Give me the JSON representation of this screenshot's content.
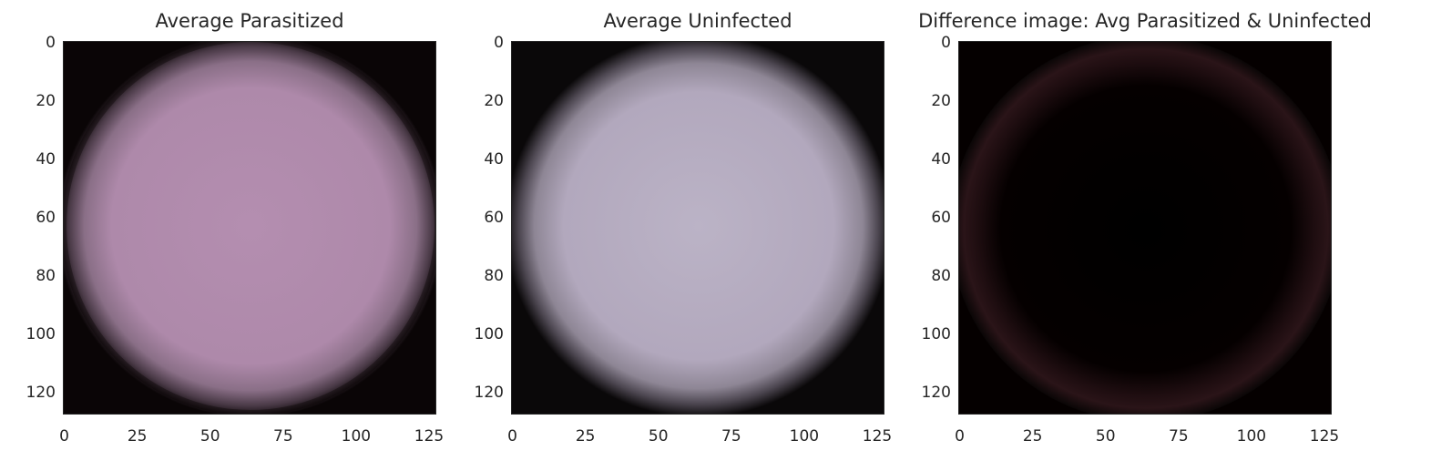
{
  "figure": {
    "panels": [
      {
        "title": "Average Parasitized",
        "image_description_colors": {
          "background": "#0a0506",
          "cell_center": "#b48eb0",
          "cell_edge": "#a07d9b"
        },
        "x_ticks": [
          "0",
          "25",
          "50",
          "75",
          "100",
          "125"
        ],
        "y_ticks": [
          "0",
          "20",
          "40",
          "60",
          "80",
          "100",
          "120"
        ]
      },
      {
        "title": "Average Uninfected",
        "image_description_colors": {
          "background": "#0a0809",
          "cell_center": "#b7aec2",
          "cell_edge": "#a89dae"
        },
        "x_ticks": [
          "0",
          "25",
          "50",
          "75",
          "100",
          "125"
        ],
        "y_ticks": [
          "0",
          "20",
          "40",
          "60",
          "80",
          "100",
          "120"
        ]
      },
      {
        "title": "Difference image: Avg Parasitized & Uninfected",
        "image_description_colors": {
          "background": "#050000",
          "ring": "#2a1418",
          "center": "#000000"
        },
        "x_ticks": [
          "0",
          "25",
          "50",
          "75",
          "100",
          "125"
        ],
        "y_ticks": [
          "0",
          "20",
          "40",
          "60",
          "80",
          "100",
          "120"
        ]
      }
    ]
  }
}
